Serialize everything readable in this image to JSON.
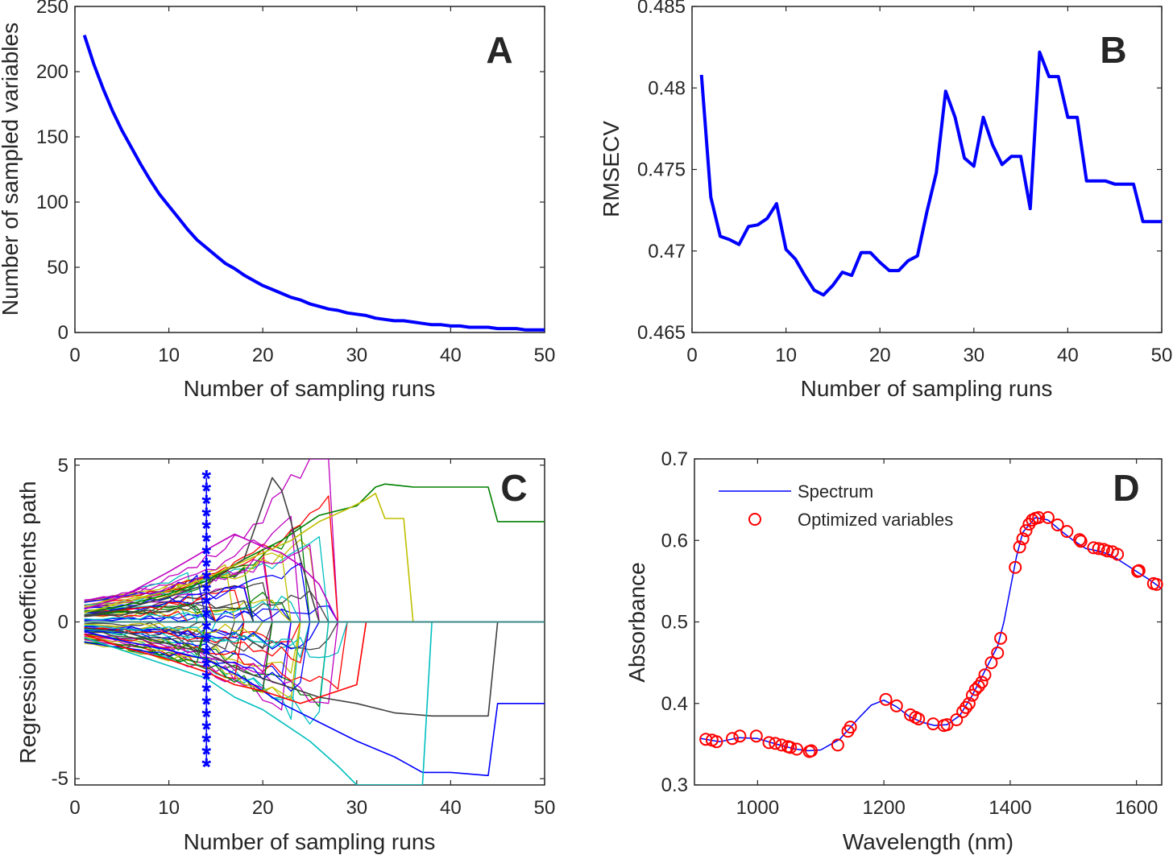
{
  "colors": {
    "blue": "#0000ff",
    "red": "#ff0000",
    "axis": "#262626"
  },
  "chart_data": [
    {
      "panel_label": "A",
      "type": "line",
      "xlabel": "Number of sampling runs",
      "ylabel": "Number of sampled variables",
      "xlim": [
        0,
        50
      ],
      "ylim": [
        0,
        250
      ],
      "xticks": [
        0,
        10,
        20,
        30,
        40,
        50
      ],
      "yticks": [
        0,
        50,
        100,
        150,
        200,
        250
      ],
      "x": [
        1,
        2,
        3,
        4,
        5,
        6,
        7,
        8,
        9,
        10,
        11,
        12,
        13,
        14,
        15,
        16,
        17,
        18,
        19,
        20,
        21,
        22,
        23,
        24,
        25,
        26,
        27,
        28,
        29,
        30,
        31,
        32,
        33,
        34,
        35,
        36,
        37,
        38,
        39,
        40,
        41,
        42,
        43,
        44,
        45,
        46,
        47,
        48,
        49,
        50
      ],
      "series": [
        {
          "name": "sampled variables",
          "color": "#0000ff",
          "values": [
            228,
            206,
            187,
            170,
            155,
            142,
            129,
            117,
            106,
            97,
            88,
            79,
            71,
            65,
            59,
            53,
            49,
            44,
            40,
            36,
            33,
            30,
            27,
            25,
            22,
            20,
            18,
            17,
            15,
            14,
            13,
            11,
            10,
            9,
            9,
            8,
            7,
            6,
            6,
            5,
            5,
            4,
            4,
            4,
            3,
            3,
            3,
            2,
            2,
            2
          ]
        }
      ]
    },
    {
      "panel_label": "B",
      "type": "line",
      "xlabel": "Number of sampling runs",
      "ylabel": "RMSECV",
      "xlim": [
        0,
        50
      ],
      "ylim": [
        0.465,
        0.485
      ],
      "xticks": [
        0,
        10,
        20,
        30,
        40,
        50
      ],
      "yticks": [
        0.465,
        0.47,
        0.475,
        0.48,
        0.485
      ],
      "ytick_labels": [
        "0.465",
        "0.47",
        "0.475",
        "0.48",
        "0.485"
      ],
      "x": [
        1,
        2,
        3,
        4,
        5,
        6,
        7,
        8,
        9,
        10,
        11,
        12,
        13,
        14,
        15,
        16,
        17,
        18,
        19,
        20,
        21,
        22,
        23,
        24,
        25,
        26,
        27,
        28,
        29,
        30,
        31,
        32,
        33,
        34,
        35,
        36,
        37,
        38,
        39,
        40,
        41,
        42,
        43,
        44,
        45,
        46,
        47,
        48,
        49,
        50
      ],
      "series": [
        {
          "name": "RMSECV",
          "color": "#0000ff",
          "values": [
            0.4808,
            0.4733,
            0.4709,
            0.4707,
            0.4704,
            0.4715,
            0.4716,
            0.472,
            0.4729,
            0.4701,
            0.4695,
            0.4685,
            0.4676,
            0.4673,
            0.4679,
            0.4687,
            0.4685,
            0.4699,
            0.4699,
            0.4693,
            0.4688,
            0.4688,
            0.4694,
            0.4697,
            0.4724,
            0.4748,
            0.4798,
            0.4782,
            0.4757,
            0.4752,
            0.4782,
            0.4765,
            0.4753,
            0.4758,
            0.4758,
            0.4726,
            0.4822,
            0.4807,
            0.4807,
            0.4782,
            0.4782,
            0.4743,
            0.4743,
            0.4743,
            0.4741,
            0.4741,
            0.4741,
            0.4718,
            0.4718,
            0.4718
          ]
        }
      ]
    },
    {
      "panel_label": "C",
      "type": "line",
      "xlabel": "Number of sampling runs",
      "ylabel": "Regression coefficients path",
      "xlim": [
        0,
        50
      ],
      "ylim": [
        -5.2,
        5.2
      ],
      "xticks": [
        0,
        10,
        20,
        30,
        40,
        50
      ],
      "yticks": [
        -5,
        0,
        5
      ],
      "marker_run": 14,
      "marker_y": [
        -4.6,
        -4.2,
        -3.8,
        -3.4,
        -3.0,
        -2.6,
        -2.2,
        -1.8,
        -1.4,
        -1.0,
        -0.6,
        -0.2,
        0.2,
        0.6,
        1.0,
        1.4,
        1.8,
        2.2,
        2.6,
        3.0,
        3.4,
        3.8,
        4.2,
        4.6
      ],
      "series_colors": [
        "#0000ff",
        "#008000",
        "#ff0000",
        "#00bfbf",
        "#bf00bf",
        "#bfbf00",
        "#404040"
      ],
      "highlighted_paths": [
        {
          "color": "#008000",
          "x": [
            1,
            5,
            10,
            14,
            18,
            22,
            26,
            30,
            32,
            33,
            36,
            40,
            44,
            45,
            50
          ],
          "values": [
            0.3,
            0.5,
            0.9,
            1.3,
            2.0,
            2.6,
            3.4,
            3.7,
            4.3,
            4.4,
            4.3,
            4.3,
            4.3,
            3.2,
            3.2
          ]
        },
        {
          "color": "#0000ff",
          "x": [
            1,
            5,
            10,
            14,
            18,
            22,
            26,
            30,
            34,
            37,
            40,
            44,
            45,
            50
          ],
          "values": [
            -0.3,
            -0.6,
            -0.9,
            -1.2,
            -1.8,
            -2.6,
            -3.2,
            -3.8,
            -4.3,
            -4.8,
            -4.8,
            -4.9,
            -2.6,
            -2.6
          ]
        },
        {
          "color": "#404040",
          "x": [
            1,
            5,
            10,
            14,
            18,
            21,
            22,
            23,
            24,
            26,
            28
          ],
          "values": [
            0.2,
            0.4,
            0.8,
            1.2,
            2.0,
            4.6,
            4.2,
            3.2,
            2.0,
            0.0,
            0.0
          ]
        },
        {
          "color": "#404040",
          "x": [
            1,
            5,
            10,
            14,
            18,
            22,
            26,
            30,
            34,
            38,
            40,
            44,
            45,
            50
          ],
          "values": [
            -0.2,
            -0.3,
            -0.7,
            -1.0,
            -1.6,
            -2.0,
            -2.4,
            -2.6,
            -2.9,
            -3.0,
            -3.0,
            -3.0,
            0.0,
            0.0
          ]
        },
        {
          "color": "#00bfbf",
          "x": [
            1,
            5,
            10,
            14,
            17,
            20,
            22,
            25,
            28,
            30,
            32,
            34,
            37,
            38,
            50
          ],
          "values": [
            -0.5,
            -0.9,
            -1.4,
            -1.8,
            -2.4,
            -2.8,
            -3.2,
            -3.8,
            -4.6,
            -5.2,
            -5.2,
            -5.2,
            -5.2,
            0.0,
            0.0
          ]
        },
        {
          "color": "#bf00bf",
          "x": [
            1,
            5,
            10,
            14,
            17,
            20,
            22,
            24,
            26,
            27,
            28
          ],
          "values": [
            0.4,
            0.8,
            1.6,
            2.3,
            2.8,
            2.4,
            2.2,
            1.8,
            1.2,
            0.6,
            0.0
          ]
        },
        {
          "color": "#ff0000",
          "x": [
            1,
            5,
            10,
            14,
            17,
            20,
            22,
            24,
            26,
            28,
            30,
            31
          ],
          "values": [
            -0.4,
            -0.8,
            -1.2,
            -1.6,
            -2.0,
            -2.2,
            -2.4,
            -2.6,
            -2.4,
            -2.2,
            -2.0,
            0.0
          ]
        },
        {
          "color": "#bfbf00",
          "x": [
            1,
            5,
            10,
            14,
            17,
            20,
            23,
            26,
            29,
            31,
            32,
            33,
            35,
            36
          ],
          "values": [
            0.3,
            0.6,
            1.0,
            1.4,
            1.8,
            2.2,
            2.6,
            3.2,
            3.6,
            3.9,
            4.1,
            3.3,
            3.3,
            0.0
          ]
        }
      ]
    },
    {
      "panel_label": "D",
      "type": "line",
      "xlabel": "Wavelength (nm)",
      "ylabel": "Absorbance",
      "xlim": [
        900,
        1640
      ],
      "ylim": [
        0.3,
        0.7
      ],
      "xticks": [
        1000,
        1200,
        1400,
        1600
      ],
      "yticks": [
        0.3,
        0.4,
        0.5,
        0.6,
        0.7
      ],
      "ytick_labels": [
        "0.3",
        "0.4",
        "0.5",
        "0.6",
        "0.7"
      ],
      "legend": {
        "placement": "top-left",
        "entries": [
          "Spectrum",
          "Optimized variables"
        ]
      },
      "spectrum": {
        "name": "Spectrum",
        "color": "#0000ff",
        "x": [
          910,
          940,
          970,
          1000,
          1030,
          1060,
          1080,
          1100,
          1130,
          1160,
          1180,
          1200,
          1220,
          1240,
          1260,
          1280,
          1300,
          1320,
          1340,
          1360,
          1380,
          1390,
          1400,
          1410,
          1420,
          1440,
          1460,
          1480,
          1500,
          1520,
          1540,
          1560,
          1580,
          1600,
          1620,
          1640
        ],
        "values": [
          0.357,
          0.353,
          0.358,
          0.357,
          0.35,
          0.344,
          0.342,
          0.343,
          0.356,
          0.382,
          0.398,
          0.404,
          0.396,
          0.384,
          0.377,
          0.373,
          0.374,
          0.385,
          0.41,
          0.44,
          0.47,
          0.5,
          0.54,
          0.58,
          0.61,
          0.628,
          0.625,
          0.612,
          0.6,
          0.59,
          0.587,
          0.582,
          0.572,
          0.562,
          0.552,
          0.541
        ]
      },
      "optimized_variables": {
        "name": "Optimized variables",
        "color": "#ff0000",
        "x": [
          918,
          928,
          935,
          960,
          972,
          998,
          1018,
          1028,
          1038,
          1048,
          1052,
          1062,
          1082,
          1085,
          1127,
          1143,
          1147,
          1203,
          1220,
          1242,
          1250,
          1255,
          1278,
          1295,
          1300,
          1315,
          1325,
          1330,
          1335,
          1340,
          1345,
          1350,
          1355,
          1360,
          1370,
          1380,
          1385,
          1408,
          1415,
          1420,
          1425,
          1430,
          1435,
          1440,
          1445,
          1460,
          1475,
          1490,
          1510,
          1512,
          1532,
          1540,
          1548,
          1554,
          1562,
          1570,
          1602,
          1604,
          1627,
          1632
        ],
        "values": [
          0.356,
          0.355,
          0.353,
          0.357,
          0.36,
          0.36,
          0.352,
          0.351,
          0.349,
          0.347,
          0.346,
          0.344,
          0.341,
          0.342,
          0.349,
          0.366,
          0.371,
          0.405,
          0.397,
          0.386,
          0.383,
          0.381,
          0.375,
          0.373,
          0.374,
          0.38,
          0.39,
          0.395,
          0.4,
          0.41,
          0.417,
          0.421,
          0.426,
          0.435,
          0.45,
          0.462,
          0.48,
          0.567,
          0.592,
          0.602,
          0.612,
          0.62,
          0.625,
          0.627,
          0.628,
          0.628,
          0.619,
          0.611,
          0.601,
          0.599,
          0.591,
          0.59,
          0.589,
          0.587,
          0.586,
          0.583,
          0.562,
          0.563,
          0.547,
          0.546
        ]
      }
    }
  ]
}
